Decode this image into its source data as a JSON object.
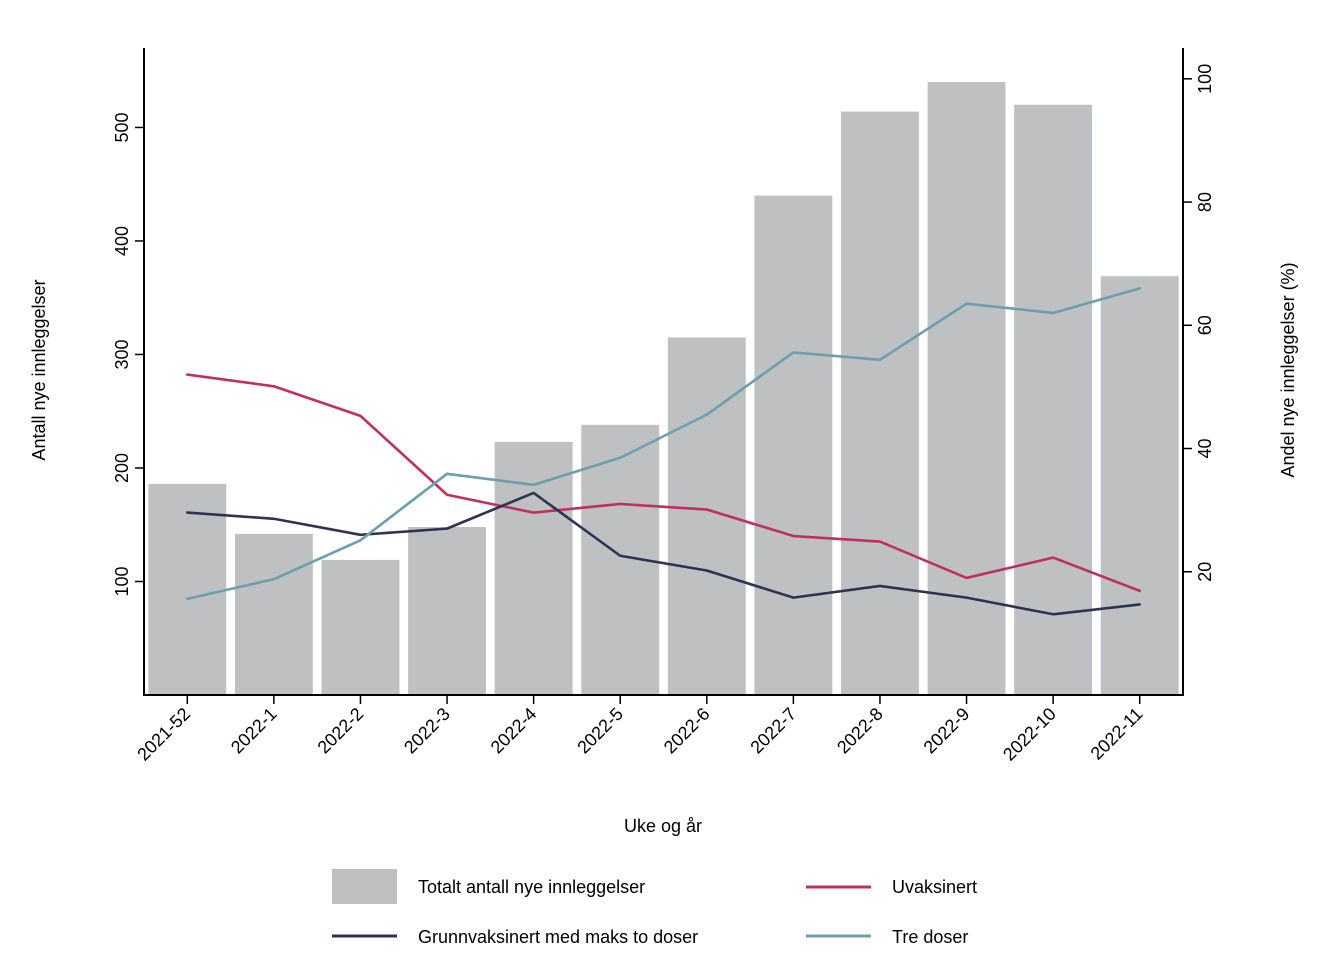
{
  "chart_data": {
    "type": "bar+line",
    "categories": [
      "2021-52",
      "2022-1",
      "2022-2",
      "2022-3",
      "2022-4",
      "2022-5",
      "2022-6",
      "2022-7",
      "2022-8",
      "2022-9",
      "2022-10",
      "2022-11"
    ],
    "xlabel": "Uke og år",
    "ylabel_left": "Antall nye innleggelser",
    "ylabel_right": "Andel nye innleggelser (%)",
    "left_axis": {
      "min": 0,
      "max": 570,
      "ticks": [
        100,
        200,
        300,
        400,
        500
      ]
    },
    "right_axis": {
      "min": 0,
      "max": 105,
      "ticks": [
        20,
        40,
        60,
        80,
        100
      ]
    },
    "grid": false,
    "legend_position": "bottom",
    "bars": {
      "name": "Totalt antall nye innleggelser",
      "axis": "left",
      "color": "#bfc0c2",
      "values": [
        186,
        142,
        119,
        148,
        223,
        238,
        315,
        440,
        514,
        540,
        520,
        369
      ]
    },
    "series": [
      {
        "name": "Uvaksinert",
        "axis": "right",
        "color": "#c0305e",
        "values": [
          52.0,
          50.1,
          45.3,
          32.5,
          29.6,
          31.0,
          30.1,
          25.8,
          24.9,
          19.0,
          22.3,
          16.9
        ]
      },
      {
        "name": "Grunnvaksinert med maks to doser",
        "axis": "right",
        "color": "#2e3356",
        "values": [
          29.6,
          28.6,
          26.0,
          27.0,
          32.8,
          22.6,
          20.2,
          15.8,
          17.7,
          15.8,
          13.1,
          14.7
        ]
      },
      {
        "name": "Tre doser",
        "axis": "right",
        "color": "#6b9eaf",
        "values": [
          15.6,
          18.8,
          25.1,
          35.9,
          34.1,
          38.5,
          45.5,
          55.6,
          54.4,
          63.5,
          62.0,
          66.0
        ]
      }
    ]
  }
}
